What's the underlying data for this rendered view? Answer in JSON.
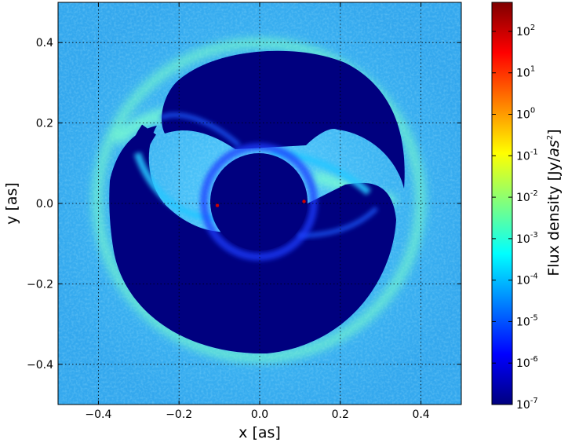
{
  "chart_data": {
    "type": "heatmap",
    "xlabel": "x [as]",
    "ylabel": "y [as]",
    "xlim": [
      -0.5,
      0.5
    ],
    "ylim": [
      -0.5,
      0.5
    ],
    "grid": true,
    "x_ticks": [
      {
        "value": -0.4,
        "label": "−0.4"
      },
      {
        "value": -0.2,
        "label": "−0.2"
      },
      {
        "value": 0.0,
        "label": "0.0"
      },
      {
        "value": 0.2,
        "label": "0.2"
      },
      {
        "value": 0.4,
        "label": "0.4"
      }
    ],
    "y_ticks": [
      {
        "value": 0.4,
        "label": "0.4"
      },
      {
        "value": 0.2,
        "label": "0.2"
      },
      {
        "value": 0.0,
        "label": "0.0"
      },
      {
        "value": -0.2,
        "label": "−0.2"
      },
      {
        "value": -0.4,
        "label": "−0.4"
      }
    ],
    "colorbar": {
      "label_main": "Flux density [Jy/",
      "label_unit": "as",
      "label_power": "2",
      "label_close": "]",
      "scale": "log",
      "range_exponent": [
        -7,
        2.7
      ],
      "ticks": [
        {
          "exponent": 2,
          "base": "10",
          "power": "2"
        },
        {
          "exponent": 1,
          "base": "10",
          "power": "1"
        },
        {
          "exponent": 0,
          "base": "10",
          "power": "0"
        },
        {
          "exponent": -1,
          "base": "10",
          "power": "-1"
        },
        {
          "exponent": -2,
          "base": "10",
          "power": "-2"
        },
        {
          "exponent": -3,
          "base": "10",
          "power": "-3"
        },
        {
          "exponent": -4,
          "base": "10",
          "power": "-4"
        },
        {
          "exponent": -5,
          "base": "10",
          "power": "-5"
        },
        {
          "exponent": -6,
          "base": "10",
          "power": "-6"
        },
        {
          "exponent": -7,
          "base": "10",
          "power": "-7"
        }
      ],
      "colormap": "jet",
      "colormap_stops": [
        "#00007f",
        "#0000ff",
        "#007fff",
        "#00ffff",
        "#7fff7f",
        "#ffff00",
        "#ff7f00",
        "#ff0000",
        "#7f0000"
      ]
    },
    "image_features": {
      "background_level_exponent": -4,
      "central_hole_radius": 0.12,
      "sources": [
        {
          "x": -0.105,
          "y": -0.005
        },
        {
          "x": 0.11,
          "y": 0.005
        }
      ]
    }
  }
}
